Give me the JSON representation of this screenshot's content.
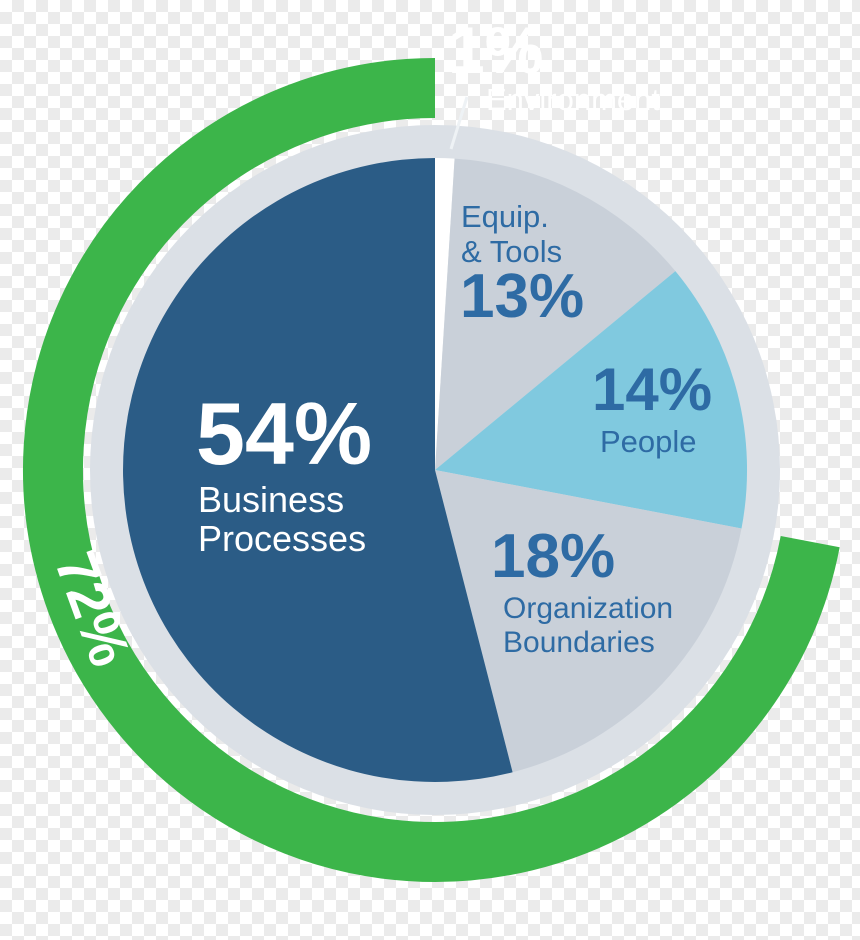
{
  "chart_data": {
    "type": "pie",
    "direction": "clockwise",
    "start_angle_deg": 0,
    "slices": [
      {
        "label": "Environment",
        "value": 1,
        "color": "#ffffff"
      },
      {
        "label": "Equip. & Tools",
        "value": 13,
        "color": "#c9d0d9"
      },
      {
        "label": "People",
        "value": 14,
        "color": "#80c9df"
      },
      {
        "label": "Organization Boundaries",
        "value": 18,
        "color": "#c9d0d9"
      },
      {
        "label": "Business Processes",
        "value": 54,
        "color": "#2b5c86"
      }
    ],
    "outer_ring": {
      "label": "72%",
      "value": 72,
      "color": "#3cb54a"
    },
    "legend_position": "on-chart",
    "grid": false
  },
  "colors": {
    "green": "#3cb54a",
    "dark_blue_slice": "#2b5c86",
    "light_blue_slice": "#80c9df",
    "gray_slice": "#c9d0d9",
    "gray_backing_ring": "#dbe0e6",
    "text_blue": "#2e6ba4",
    "text_white": "#ffffff"
  },
  "labels": {
    "business_pct": "54%",
    "business_line1": "Business",
    "business_line2": "Processes",
    "equip_line1": "Equip.",
    "equip_line2": "& Tools",
    "equip_pct": "13%",
    "people_pct": "14%",
    "people_name": "People",
    "org_pct": "18%",
    "org_line1": "Organization",
    "org_line2": "Boundaries",
    "environment_pct": "1%",
    "environment_name": "Environment",
    "ring_pct": "72%"
  }
}
